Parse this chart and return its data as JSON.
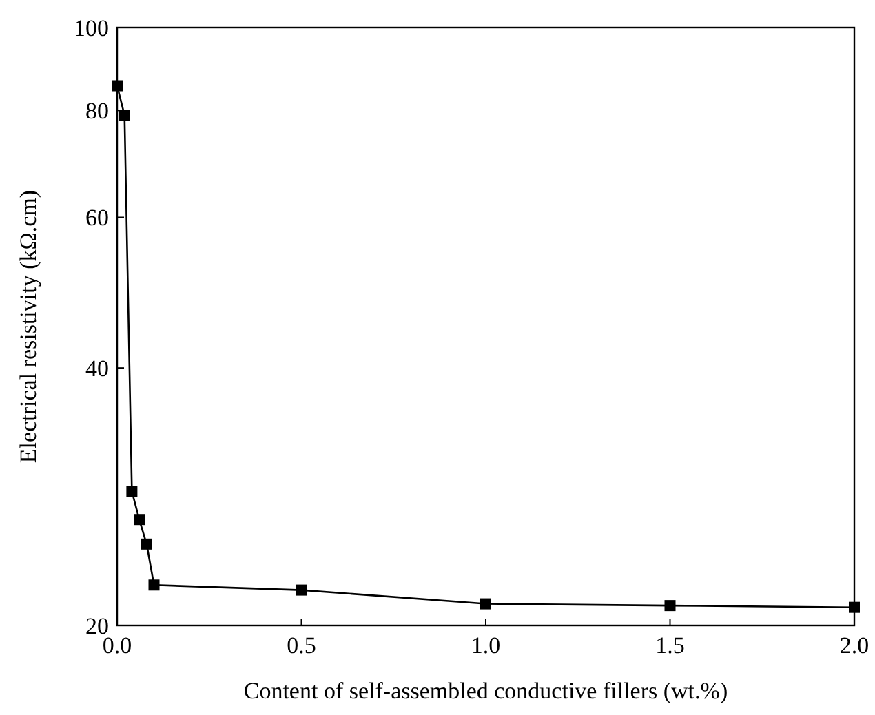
{
  "chart_data": {
    "type": "line",
    "xlabel": "Content of self-assembled conductive fillers (wt.%)",
    "ylabel": "Electrical resistivity (kΩ.cm)",
    "log": "y",
    "xlim": [
      0,
      2
    ],
    "ylim": [
      20,
      100
    ],
    "xticks": [
      {
        "value": 0,
        "label": "0.0"
      },
      {
        "value": 0.5,
        "label": "0.5"
      },
      {
        "value": 1,
        "label": "1.0"
      },
      {
        "value": 1.5,
        "label": "1.5"
      },
      {
        "value": 2,
        "label": "2.0"
      }
    ],
    "yticks": [
      20,
      40,
      60,
      80,
      100
    ],
    "marker": "square",
    "grid": false,
    "x": [
      0,
      0.02,
      0.04,
      0.06,
      0.08,
      0.1,
      0.5,
      1,
      1.5,
      2
    ],
    "series": [
      {
        "color": "#000000",
        "values": [
          85.5,
          79,
          28.7,
          26.6,
          24.9,
          22.3,
          22,
          21.2,
          21.1,
          21
        ]
      }
    ]
  }
}
